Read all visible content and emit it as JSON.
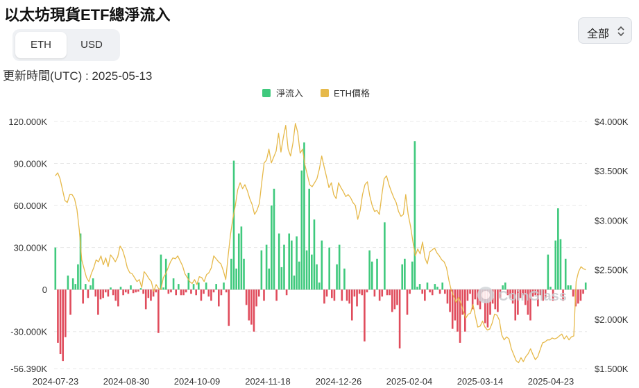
{
  "page": {
    "title": "以太坊現貨ETF總淨流入",
    "updated_label": "更新時間(UTC) : 2025-05-13"
  },
  "toggle": {
    "options": [
      "ETH",
      "USD"
    ],
    "active": 0
  },
  "range_select": {
    "value": "全部"
  },
  "watermark": {
    "text": "CoinGlass",
    "icon": "coinglass-logo-icon"
  },
  "colors": {
    "inflow": "#3fc97d",
    "outflow": "#e04c5c",
    "price": "#e6b94a",
    "grid": "#e8e8e8",
    "zero": "#cfcfcf"
  },
  "chart_data": {
    "type": "bar",
    "legend": [
      {
        "name": "淨流入",
        "color": "#3fc97d"
      },
      {
        "name": "ETH價格",
        "color": "#e6b94a"
      }
    ],
    "legend_position": "top-center",
    "y_left": {
      "min": -56390,
      "max": 120000,
      "ticks": [
        120000,
        90000,
        60000,
        30000,
        0,
        -30000,
        -56390
      ],
      "tick_labels": [
        "120.000K",
        "90.000K",
        "60.000K",
        "30.000K",
        "0",
        "-30.000K",
        "-56.390K"
      ]
    },
    "y_right": {
      "min": 1500,
      "max": 4000,
      "ticks": [
        4000,
        3500,
        3000,
        2500,
        2000,
        1500
      ],
      "tick_labels": [
        "$4.000K",
        "$3.500K",
        "$3.000K",
        "$2.500K",
        "$2.000K",
        "$1.500K"
      ]
    },
    "x_tick_labels": [
      "2024-07-23",
      "2024-08-30",
      "2024-10-09",
      "2024-11-18",
      "2024-12-26",
      "2025-02-04",
      "2025-03-14",
      "2025-04-23"
    ],
    "grid": true,
    "flows": [
      30000,
      -38000,
      -46000,
      -51000,
      -34000,
      10000,
      -18000,
      8000,
      4000,
      18000,
      40000,
      -10000,
      4000,
      -6000,
      3000,
      8000,
      -5000,
      -18000,
      -7000,
      -6000,
      -2000,
      -5000,
      1500,
      -4000,
      -8000,
      -12000,
      2000,
      -4000,
      -2000,
      -3000,
      3000,
      -2500,
      -2000,
      -1500,
      1000,
      -3000,
      -14000,
      -6000,
      -8000,
      -5000,
      -2000,
      -31000,
      25000,
      1500,
      22000,
      -3000,
      -2000,
      8000,
      -4000,
      4000,
      -4000,
      -4000,
      -2000,
      12000,
      -3000,
      4000,
      -4000,
      5000,
      -8000,
      -3000,
      5000,
      -5000,
      -8000,
      -2000,
      4000,
      -12000,
      -4000,
      5000,
      -2000,
      -26000,
      22000,
      92000,
      15000,
      40000,
      45000,
      22000,
      -11000,
      -22000,
      -25000,
      -30000,
      -12000,
      -5000,
      28000,
      -8000,
      32000,
      15000,
      60000,
      72000,
      -8000,
      40000,
      16000,
      32000,
      -4000,
      40000,
      35000,
      10000,
      38000,
      20000,
      85000,
      105000,
      28000,
      72000,
      25000,
      50000,
      18000,
      5000,
      35000,
      -10000,
      -5000,
      30000,
      -6000,
      -8000,
      18000,
      32000,
      -8000,
      15000,
      -8000,
      -10000,
      -22000,
      -5000,
      -12000,
      -3000,
      -4000,
      -37000,
      -2000,
      28000,
      20000,
      -5000,
      22000,
      -8000,
      -5000,
      48000,
      -4000,
      -4000,
      -16000,
      -14000,
      -11000,
      -42000,
      18000,
      22000,
      -18000,
      -3000,
      20000,
      106000,
      2000,
      4000,
      -3000,
      -8000,
      5000,
      -2000,
      -4000,
      4000,
      2000,
      -3000,
      5000,
      -3000,
      -10000,
      -16000,
      -28000,
      -22000,
      -30000,
      -38000,
      -18000,
      -30000,
      -8000,
      -3000,
      -14000,
      -7000,
      -11000,
      -14000,
      -8000,
      -24000,
      -27000,
      -18000,
      -10000,
      -14000,
      -16000,
      -6000,
      3000,
      5000,
      -4000,
      -6000,
      -10000,
      -22000,
      -18000,
      -6000,
      -4000,
      -11000,
      -18000,
      -22000,
      -5000,
      -4000,
      -12000,
      -4000,
      -8000,
      -6000,
      25000,
      2000,
      -8000,
      35000,
      58000,
      36000,
      -8000,
      22000,
      3000,
      3000,
      -5000,
      -12000,
      -10000,
      -8000,
      -3000,
      5000
    ],
    "price": [
      3450,
      3480,
      3420,
      3310,
      3200,
      3180,
      3260,
      3260,
      3220,
      3110,
      2900,
      2600,
      2510,
      2420,
      2380,
      2460,
      2520,
      2600,
      2580,
      2640,
      2550,
      2620,
      2530,
      2650,
      2620,
      2580,
      2630,
      2740,
      2700,
      2620,
      2520,
      2470,
      2460,
      2420,
      2380,
      2400,
      2320,
      2480,
      2450,
      2410,
      2380,
      2280,
      2350,
      2310,
      2300,
      2420,
      2460,
      2520,
      2580,
      2620,
      2610,
      2640,
      2590,
      2540,
      2460,
      2420,
      2380,
      2360,
      2400,
      2350,
      2430,
      2420,
      2380,
      2450,
      2470,
      2520,
      2640,
      2610,
      2580,
      2560,
      2490,
      2400,
      2640,
      2860,
      3020,
      3150,
      3310,
      3380,
      3320,
      3360,
      3300,
      3220,
      3160,
      3060,
      3100,
      3170,
      3380,
      3580,
      3610,
      3720,
      3580,
      3640,
      3700,
      3880,
      3690,
      3840,
      3960,
      3720,
      3650,
      3780,
      3980,
      3890,
      3680,
      3720,
      3560,
      3460,
      3360,
      3340,
      3380,
      3420,
      3520,
      3650,
      3540,
      3440,
      3330,
      3380,
      3260,
      3220,
      3380,
      3330,
      3290,
      3240,
      3260,
      3230,
      3180,
      3150,
      3010,
      3100,
      3260,
      3360,
      3390,
      3250,
      3150,
      3090,
      3100,
      3060,
      3250,
      3420,
      3450,
      3360,
      3290,
      3230,
      3180,
      3090,
      3040,
      3060,
      3260,
      3060,
      2940,
      2780,
      2640,
      2710,
      2660,
      2780,
      2620,
      2560,
      2680,
      2700,
      2720,
      2670,
      2640,
      2600,
      2580,
      2520,
      2390,
      2290,
      2230,
      2170,
      2220,
      2160,
      2080,
      2010,
      2050,
      2060,
      2150,
      2030,
      1920,
      1930,
      1980,
      1920,
      1890,
      1900,
      1960,
      2050,
      2040,
      1990,
      1840,
      1790,
      1820,
      1800,
      1700,
      1640,
      1580,
      1560,
      1610,
      1570,
      1620,
      1650,
      1700,
      1640,
      1590,
      1620,
      1690,
      1760,
      1770,
      1790,
      1790,
      1810,
      1800,
      1810,
      1830,
      1850,
      1800,
      1830,
      1790,
      1820,
      1830,
      2380,
      2480,
      2530,
      2510,
      2500
    ]
  }
}
